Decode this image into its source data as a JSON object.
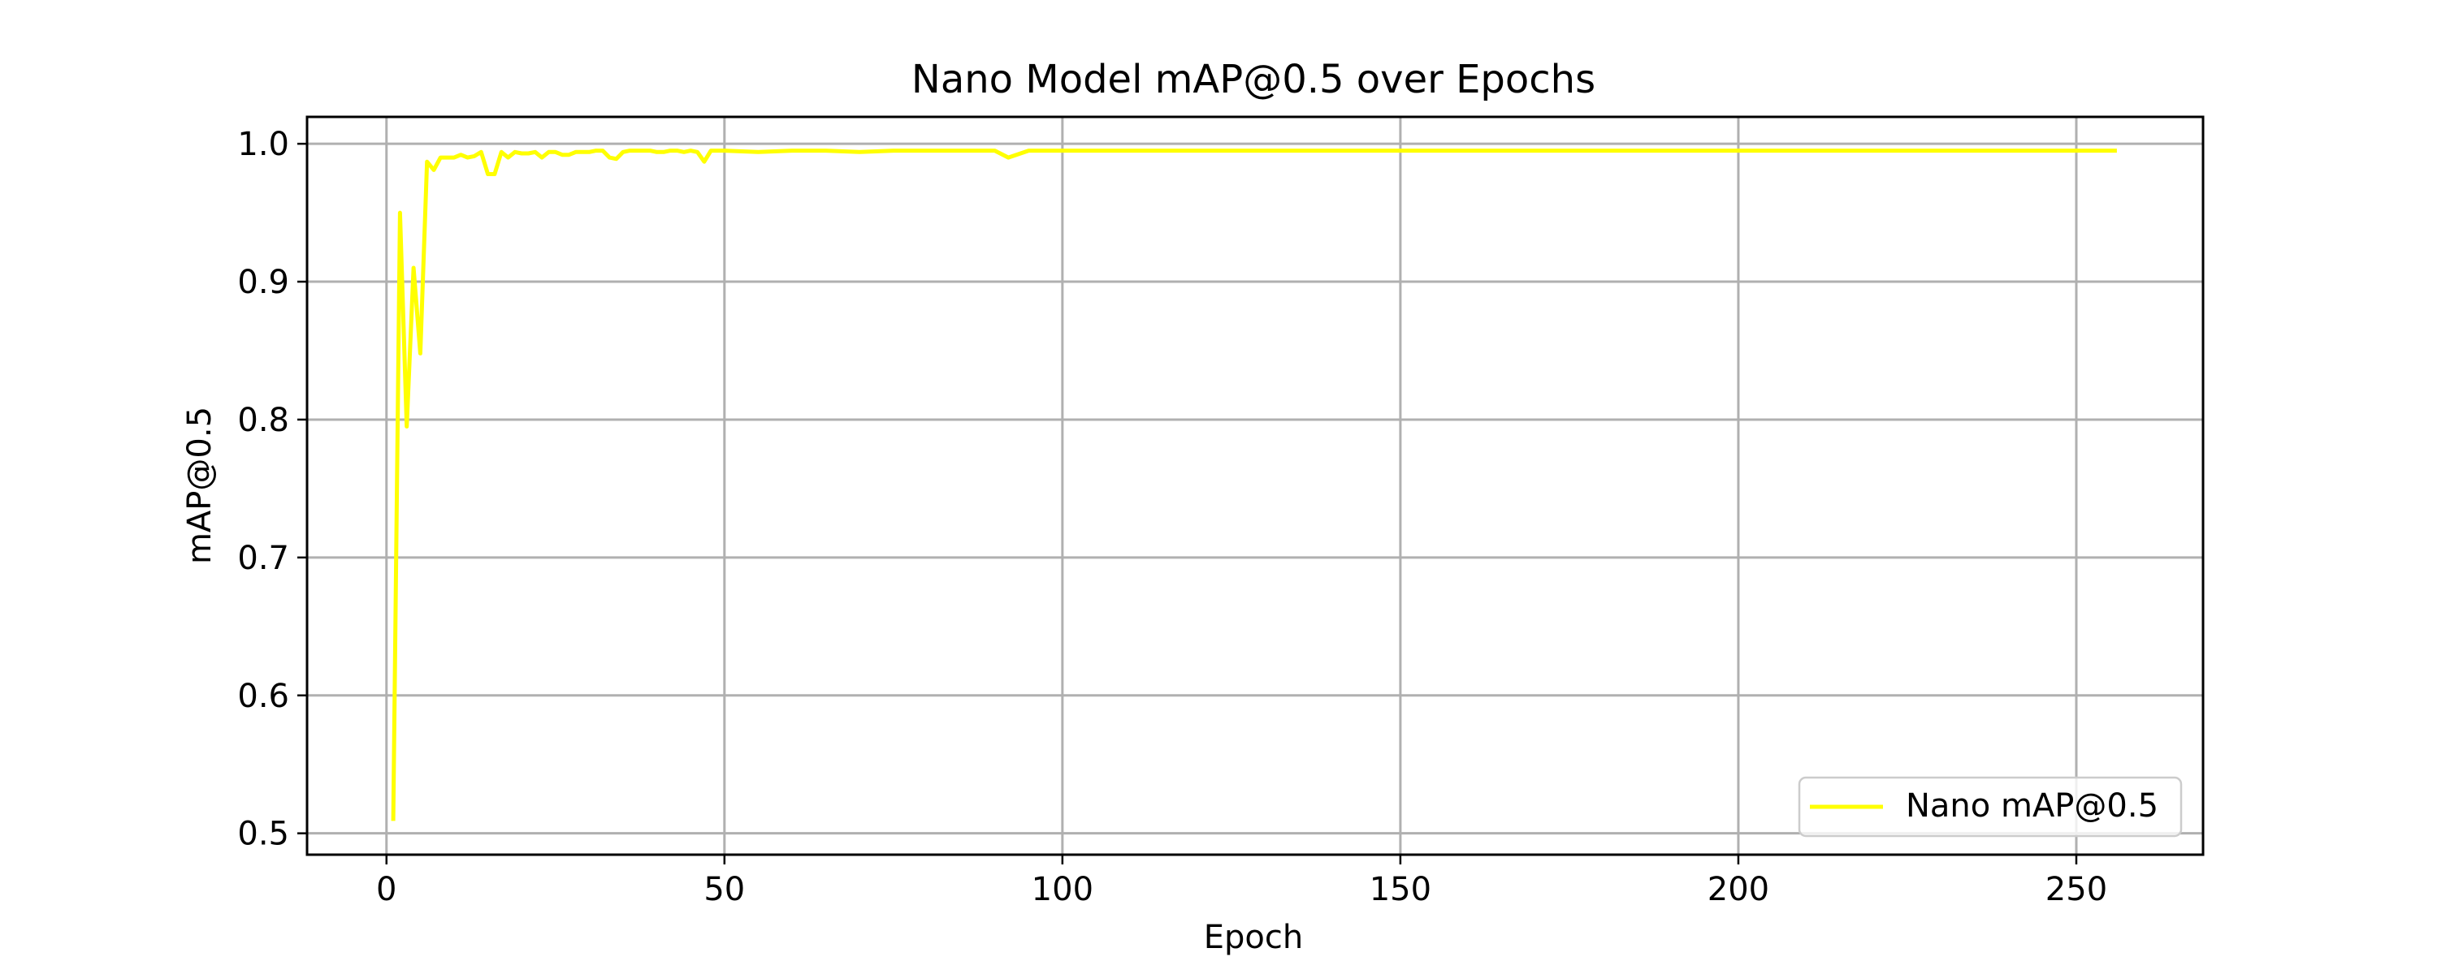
{
  "chart_data": {
    "type": "line",
    "title": "Nano Model mAP@0.5 over Epochs",
    "xlabel": "Epoch",
    "ylabel": "mAP@0.5",
    "xlim": [
      -11.75,
      268.75
    ],
    "ylim": [
      0.4845,
      1.0195
    ],
    "xticks": [
      0,
      50,
      100,
      150,
      200,
      250
    ],
    "yticks": [
      0.5,
      0.6,
      0.7,
      0.8,
      0.9,
      1.0
    ],
    "xtick_labels": [
      "0",
      "50",
      "100",
      "150",
      "200",
      "250"
    ],
    "ytick_labels": [
      "0.5",
      "0.6",
      "0.7",
      "0.8",
      "0.9",
      "1.0"
    ],
    "grid": true,
    "legend_position": "lower-right",
    "series": [
      {
        "name": "Nano mAP@0.5",
        "color": "#ffff00",
        "x": [
          1,
          2,
          3,
          4,
          5,
          6,
          7,
          8,
          9,
          10,
          11,
          12,
          13,
          14,
          15,
          16,
          17,
          18,
          19,
          20,
          21,
          22,
          23,
          24,
          25,
          26,
          27,
          28,
          29,
          30,
          31,
          32,
          33,
          34,
          35,
          36,
          37,
          38,
          39,
          40,
          41,
          42,
          43,
          44,
          45,
          46,
          47,
          48,
          49,
          50,
          55,
          60,
          65,
          70,
          75,
          80,
          85,
          90,
          92,
          95,
          100,
          110,
          120,
          130,
          140,
          150,
          160,
          170,
          180,
          190,
          200,
          210,
          220,
          230,
          240,
          250,
          256
        ],
        "y": [
          0.509,
          0.95,
          0.795,
          0.91,
          0.848,
          0.987,
          0.981,
          0.99,
          0.99,
          0.99,
          0.992,
          0.99,
          0.991,
          0.994,
          0.978,
          0.978,
          0.994,
          0.99,
          0.994,
          0.993,
          0.993,
          0.994,
          0.99,
          0.994,
          0.994,
          0.992,
          0.992,
          0.994,
          0.994,
          0.994,
          0.995,
          0.995,
          0.99,
          0.989,
          0.994,
          0.995,
          0.995,
          0.995,
          0.995,
          0.994,
          0.994,
          0.995,
          0.995,
          0.994,
          0.995,
          0.994,
          0.987,
          0.995,
          0.995,
          0.995,
          0.994,
          0.995,
          0.995,
          0.994,
          0.995,
          0.995,
          0.995,
          0.995,
          0.99,
          0.995,
          0.995,
          0.995,
          0.995,
          0.995,
          0.995,
          0.995,
          0.995,
          0.995,
          0.995,
          0.995,
          0.995,
          0.995,
          0.995,
          0.995,
          0.995,
          0.995,
          0.995
        ]
      }
    ]
  }
}
